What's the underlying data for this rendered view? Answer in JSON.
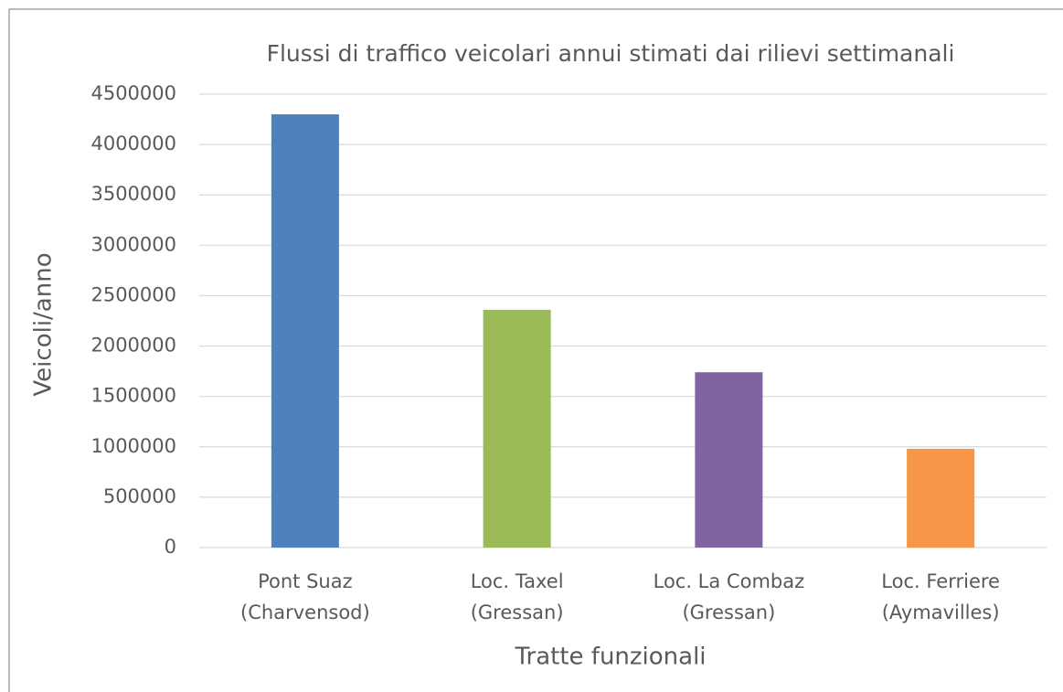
{
  "chart_data": {
    "type": "bar",
    "title": "Flussi di traffico veicolari annui stimati dai rilievi settimanali",
    "x_label": "Tratte funzionali",
    "y_label": "Veicoli/anno",
    "categories": [
      [
        "Pont Suaz",
        "(Charvensod)"
      ],
      [
        "Loc. Taxel",
        "(Gressan)"
      ],
      [
        "Loc. La Combaz",
        "(Gressan)"
      ],
      [
        "Loc. Ferriere",
        "(Aymavilles)"
      ]
    ],
    "values": [
      4300000,
      2360000,
      1740000,
      980000
    ],
    "colors": [
      "#4f81bd",
      "#9bbb59",
      "#8064a2",
      "#f79646"
    ],
    "ylim": [
      0,
      4500000
    ],
    "yticks": [
      0,
      500000,
      1000000,
      1500000,
      2000000,
      2500000,
      3000000,
      3500000,
      4000000,
      4500000
    ],
    "grid": true
  }
}
